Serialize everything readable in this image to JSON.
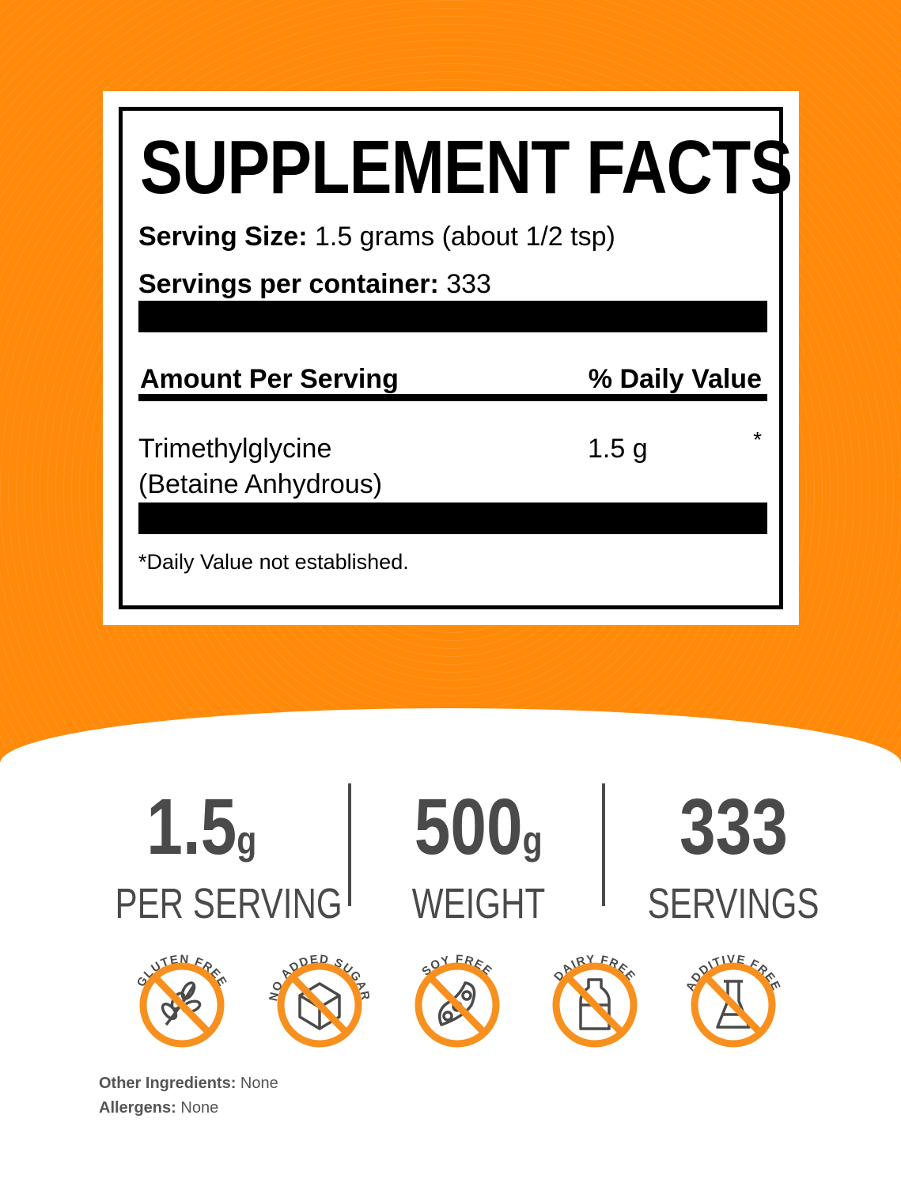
{
  "colors": {
    "orange": "#ff8a0a",
    "badge_orange": "#f7901e",
    "text_gray": "#4a4a4a"
  },
  "label": {
    "title": "SUPPLEMENT FACTS",
    "serving_size_label": "Serving Size:",
    "serving_size_value": "1.5 grams (about 1/2 tsp)",
    "servings_label": "Servings per container:",
    "servings_value": "333",
    "amount_header": "Amount Per Serving",
    "dv_header": "% Daily Value",
    "ingredient_line1": "Trimethylglycine",
    "ingredient_line2": "(Betaine Anhydrous)",
    "ingredient_amount": "1.5 g",
    "ingredient_dv": "*",
    "footnote": "*Daily Value not established."
  },
  "stats": [
    {
      "value": "1.5",
      "unit": "g",
      "label": "PER SERVING"
    },
    {
      "value": "500",
      "unit": "g",
      "label": "WEIGHT"
    },
    {
      "value": "333",
      "unit": "",
      "label": "SERVINGS"
    }
  ],
  "badges": [
    {
      "text": "GLUTEN FREE",
      "icon": "wheat-icon"
    },
    {
      "text": "NO ADDED SUGAR",
      "icon": "sugar-cube-icon"
    },
    {
      "text": "SOY FREE",
      "icon": "soybean-icon"
    },
    {
      "text": "DAIRY FREE",
      "icon": "milk-bottle-icon"
    },
    {
      "text": "ADDITIVE FREE",
      "icon": "flask-icon"
    }
  ],
  "footer": {
    "other_label": "Other Ingredients:",
    "other_value": "None",
    "allergens_label": "Allergens:",
    "allergens_value": "None"
  }
}
